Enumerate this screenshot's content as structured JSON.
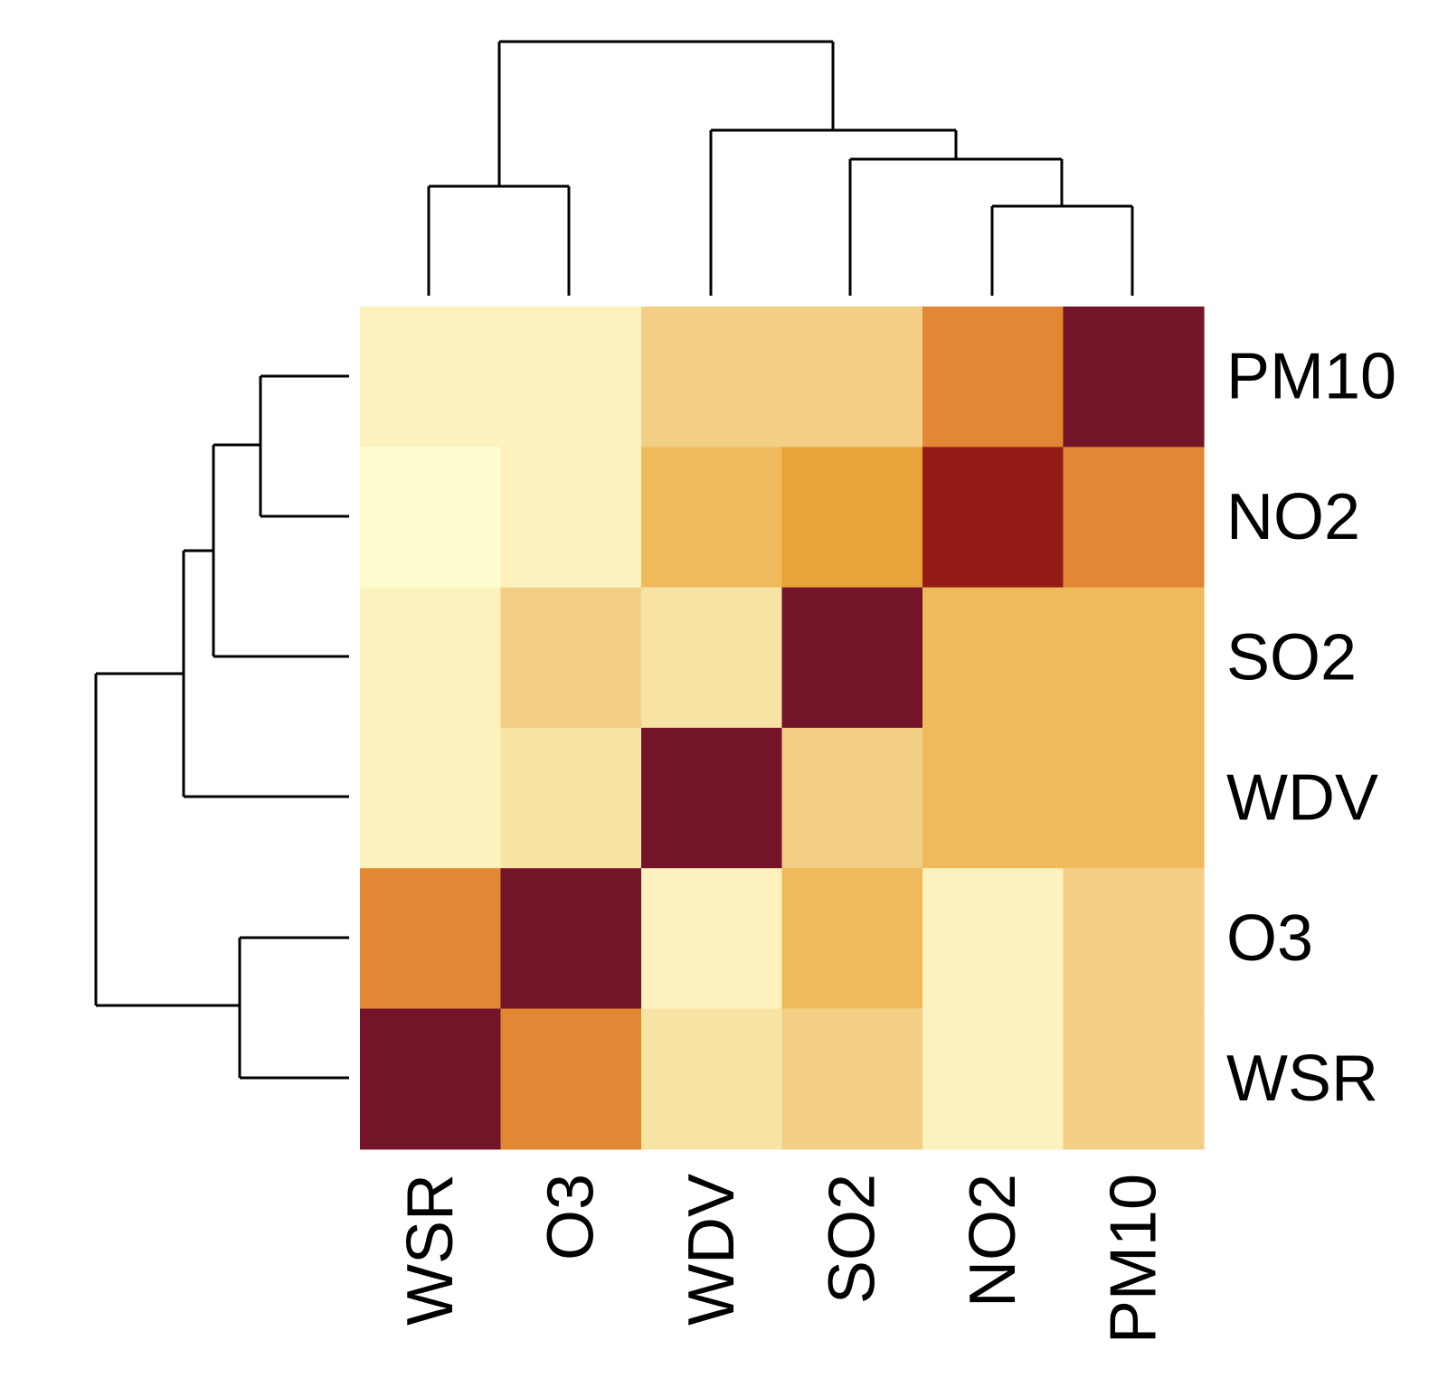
{
  "chart_data": {
    "type": "heatmap",
    "title": "",
    "x_labels": [
      "WSR",
      "O3",
      "WDV",
      "SO2",
      "NO2",
      "PM10"
    ],
    "y_labels": [
      "PM10",
      "NO2",
      "SO2",
      "WDV",
      "O3",
      "WSR"
    ],
    "matrix": [
      [
        "#FDF1BE",
        "#FDF1BE",
        "#F2CF85",
        "#F2CF85",
        "#E28834",
        "#731428"
      ],
      [
        "#FEFDD0",
        "#FDF1BE",
        "#EFBA5B",
        "#E8A439",
        "#941C17",
        "#E28834"
      ],
      [
        "#FDF1BE",
        "#F2CF85",
        "#F7E3A3",
        "#731428",
        "#EFBA5B",
        "#EFBA5B"
      ],
      [
        "#FDF1BE",
        "#F7E3A3",
        "#731428",
        "#F2CF85",
        "#EFBA5B",
        "#EFBA5B"
      ],
      [
        "#E28834",
        "#731428",
        "#FDF1BE",
        "#EFBA5B",
        "#FDF1BE",
        "#F2CF85"
      ],
      [
        "#731428",
        "#E28834",
        "#F7E3A3",
        "#F2CF85",
        "#FDF1BE",
        "#F2CF85"
      ]
    ],
    "color_scale": [
      "#FEFDD0",
      "#FDF1BE",
      "#F7E3A3",
      "#F2CF85",
      "#EFBA5B",
      "#E8A439",
      "#E28834",
      "#941C17",
      "#731428"
    ],
    "legend": "none",
    "grid": false,
    "dendrogram_columns": "top",
    "dendrogram_rows": "left"
  }
}
